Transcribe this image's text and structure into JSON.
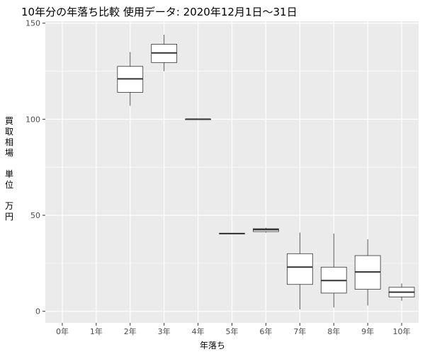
{
  "chart_data": {
    "type": "boxplot",
    "title": "10年分の年落ち比較 使用データ: 2020年12月1日～31日",
    "xlabel": "年落ち",
    "ylabel": "買取相場 単位 万円",
    "ylabel_lines": [
      "買",
      "取",
      "相",
      "場",
      "",
      "単",
      "位",
      "",
      "万",
      "円"
    ],
    "ylim": [
      -6,
      151
    ],
    "yticks": [
      0,
      50,
      100,
      150
    ],
    "categories": [
      "0年",
      "1年",
      "2年",
      "3年",
      "4年",
      "5年",
      "6年",
      "7年",
      "8年",
      "9年",
      "10年"
    ],
    "boxes": [
      null,
      null,
      {
        "min": 107,
        "q1": 114,
        "median": 121,
        "q3": 127.5,
        "max": 135
      },
      {
        "min": 125,
        "q1": 129.5,
        "median": 134.5,
        "q3": 139,
        "max": 144
      },
      {
        "min": 100,
        "q1": 100,
        "median": 100,
        "q3": 100,
        "max": 100
      },
      {
        "min": 40.5,
        "q1": 40.5,
        "median": 40.5,
        "q3": 40.5,
        "max": 40.5
      },
      {
        "min": 41,
        "q1": 41.5,
        "median": 42.5,
        "q3": 43,
        "max": 43.5
      },
      {
        "min": 1,
        "q1": 14,
        "median": 23,
        "q3": 30,
        "max": 41
      },
      {
        "min": 2,
        "q1": 9.5,
        "median": 16,
        "q3": 23,
        "max": 40.5
      },
      {
        "min": 3,
        "q1": 11.5,
        "median": 20.5,
        "q3": 29,
        "max": 37.5
      },
      {
        "min": 5.5,
        "q1": 7.5,
        "median": 10,
        "q3": 12.5,
        "max": 14.5
      }
    ],
    "grid": true,
    "colors": {
      "panel": "#ebebeb",
      "grid": "#ffffff",
      "box_fill": "#ffffff",
      "box_stroke": "#333333"
    }
  }
}
